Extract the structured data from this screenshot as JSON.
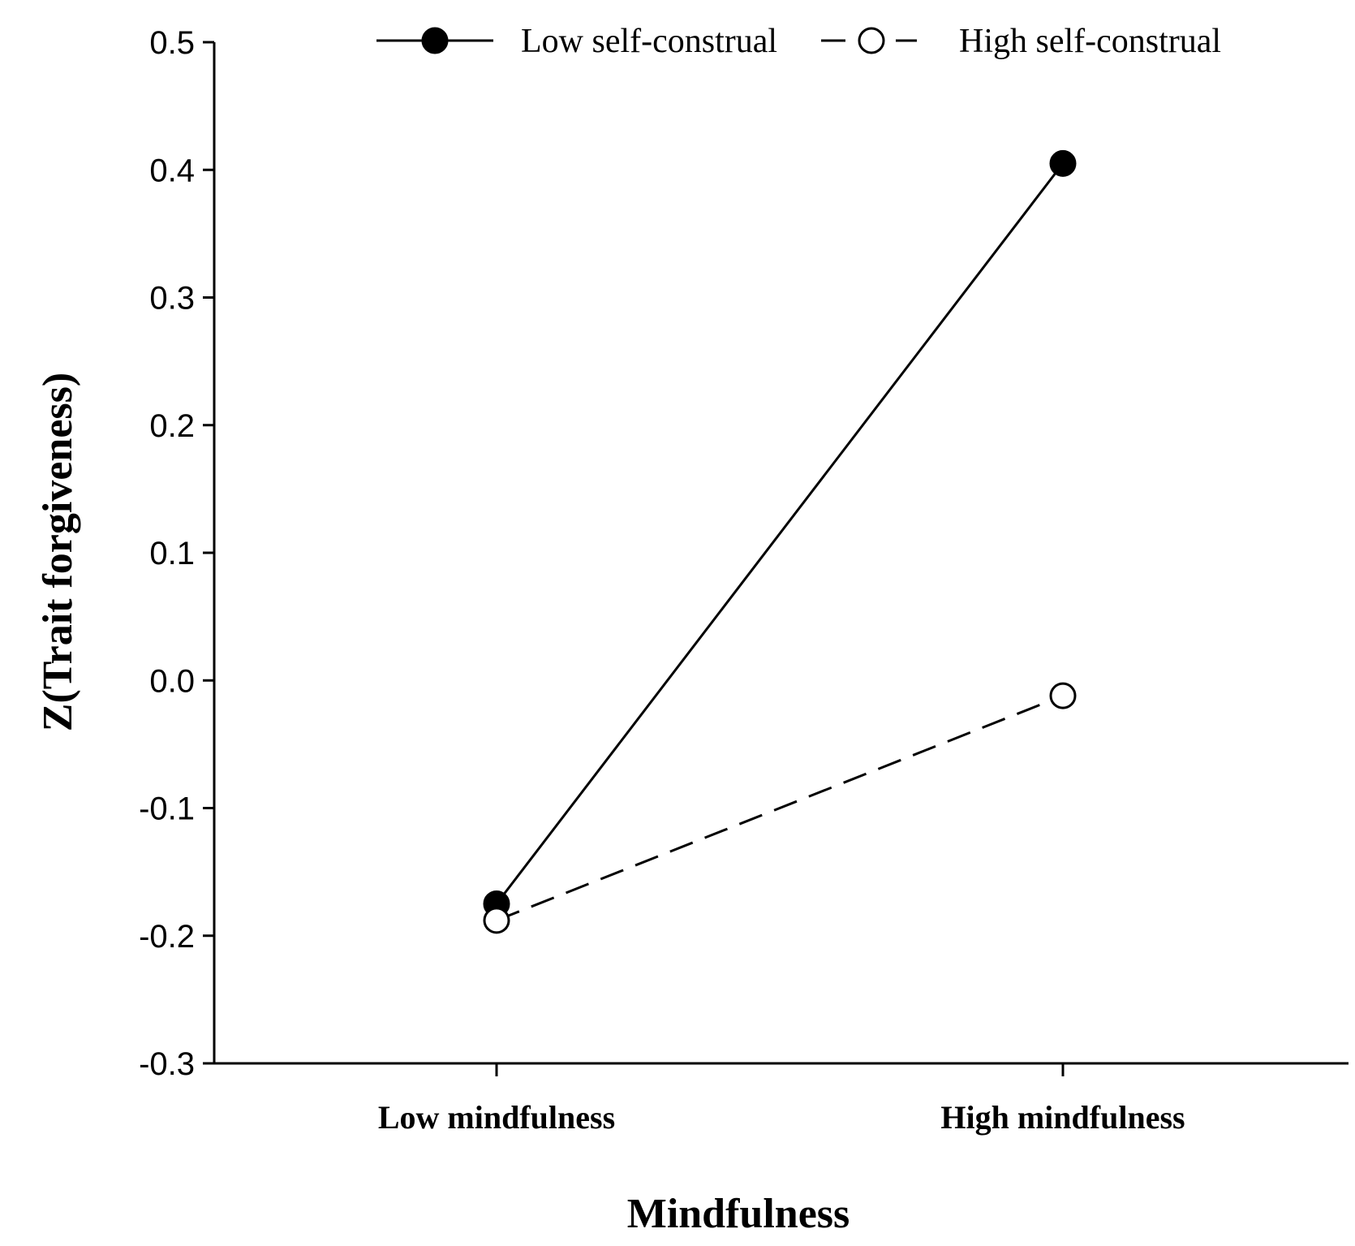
{
  "chart_data": {
    "type": "line",
    "title": "",
    "xlabel": "Mindfulness",
    "ylabel": "Z(Trait forgiveness)",
    "categories": [
      "Low mindfulness",
      "High mindfulness"
    ],
    "ylim": [
      -0.3,
      0.5
    ],
    "yticks": [
      "0.5",
      "0.4",
      "0.3",
      "0.2",
      "0.1",
      "0.0",
      "-0.1",
      "-0.2",
      "-0.3"
    ],
    "grid": false,
    "legend_position": "top",
    "series": [
      {
        "name": "Low self-construal",
        "values": [
          -0.175,
          0.405
        ],
        "line_style": "solid",
        "marker": "filled-circle",
        "color": "#000000"
      },
      {
        "name": "High self-construal",
        "values": [
          -0.188,
          -0.012
        ],
        "line_style": "dashed",
        "marker": "open-circle",
        "color": "#000000"
      }
    ]
  }
}
